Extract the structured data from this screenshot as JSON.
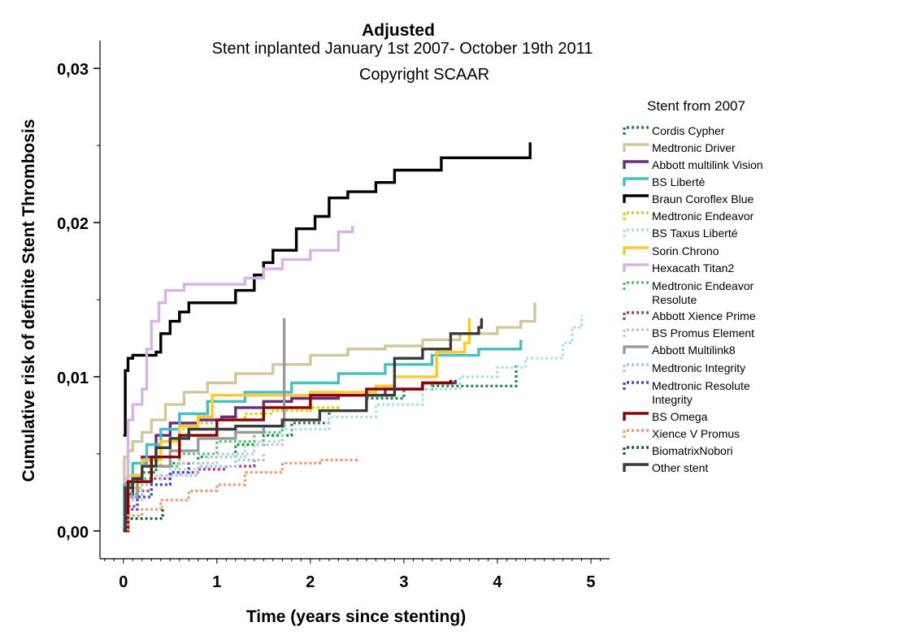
{
  "chart_data": {
    "type": "line",
    "title": "Adjusted",
    "subtitle": "Stent inplanted January 1st 2007- October 19th 2011",
    "subtitle2": "Copyright SCAAR",
    "xlabel": "Time (years since stenting)",
    "ylabel": "Cumulative risk of definite Stent Thrombosis",
    "xlim": [
      -0.25,
      5.2
    ],
    "ylim": [
      -0.0018,
      0.0318
    ],
    "xticks": [
      0,
      1,
      2,
      3,
      4,
      5
    ],
    "xtick_labels": [
      "0",
      "1",
      "2",
      "3",
      "4",
      "5"
    ],
    "yticks": [
      0.0,
      0.01,
      0.02,
      0.03
    ],
    "ytick_labels": [
      "0,00",
      "0,01",
      "0,02",
      "0,03"
    ],
    "legend_title": "Stent from 2007",
    "legend_position": "right",
    "grid": false,
    "series": [
      {
        "name": "Cordis Cypher",
        "color": "#1e8a4a",
        "dash": "dotted",
        "points": [
          [
            0,
            0
          ],
          [
            0.02,
            0.0032
          ],
          [
            0.1,
            0.0036
          ],
          [
            0.2,
            0.0038
          ],
          [
            0.35,
            0.0042
          ],
          [
            0.5,
            0.0044
          ],
          [
            0.8,
            0.0048
          ],
          [
            1.2,
            0.0056
          ],
          [
            1.5,
            0.0062
          ],
          [
            1.8,
            0.007
          ],
          [
            2.2,
            0.0078
          ],
          [
            2.6,
            0.0086
          ],
          [
            3,
            0.0092
          ],
          [
            3.3,
            0.0094
          ],
          [
            3.8,
            0.0094
          ],
          [
            4.2,
            0.0094
          ],
          [
            4.2,
            0.0108
          ]
        ]
      },
      {
        "name": "Medtronic Driver",
        "color": "#d1c79a",
        "dash": "solid",
        "points": [
          [
            0,
            0
          ],
          [
            0.01,
            0.0048
          ],
          [
            0.05,
            0.0052
          ],
          [
            0.1,
            0.0058
          ],
          [
            0.2,
            0.0064
          ],
          [
            0.3,
            0.0072
          ],
          [
            0.45,
            0.0082
          ],
          [
            0.65,
            0.009
          ],
          [
            0.9,
            0.0096
          ],
          [
            1.2,
            0.0102
          ],
          [
            1.6,
            0.0108
          ],
          [
            2,
            0.0114
          ],
          [
            2.4,
            0.0118
          ],
          [
            2.8,
            0.012
          ],
          [
            3.2,
            0.0124
          ],
          [
            3.6,
            0.0128
          ],
          [
            4,
            0.0132
          ],
          [
            4.25,
            0.0136
          ],
          [
            4.4,
            0.0148
          ]
        ]
      },
      {
        "name": "Abbott multilink Vision",
        "color": "#6b2a7a",
        "dash": "solid",
        "points": [
          [
            0,
            0
          ],
          [
            0.03,
            0.0024
          ],
          [
            0.1,
            0.0036
          ],
          [
            0.2,
            0.0048
          ],
          [
            0.35,
            0.0062
          ],
          [
            0.5,
            0.007
          ],
          [
            0.8,
            0.0072
          ],
          [
            1.05,
            0.0074
          ],
          [
            1.2,
            0.008
          ],
          [
            1.5,
            0.0084
          ],
          [
            1.8,
            0.0086
          ],
          [
            2.3,
            0.0088
          ],
          [
            2.8,
            0.0092
          ],
          [
            3.2,
            0.0096
          ],
          [
            3.55,
            0.0098
          ]
        ]
      },
      {
        "name": "BS Libertè",
        "color": "#45bfc4",
        "dash": "solid",
        "points": [
          [
            0,
            0
          ],
          [
            0.01,
            0.003
          ],
          [
            0.1,
            0.0044
          ],
          [
            0.25,
            0.0056
          ],
          [
            0.4,
            0.0066
          ],
          [
            0.6,
            0.0076
          ],
          [
            0.9,
            0.0084
          ],
          [
            1.3,
            0.009
          ],
          [
            1.8,
            0.0096
          ],
          [
            2.3,
            0.0102
          ],
          [
            2.8,
            0.0108
          ],
          [
            3.3,
            0.0114
          ],
          [
            3.8,
            0.0118
          ],
          [
            4.25,
            0.0124
          ]
        ]
      },
      {
        "name": "Braun Coroflex Blue",
        "color": "#000000",
        "dash": "solid",
        "points": [
          [
            0,
            0.0062
          ],
          [
            0.02,
            0.0104
          ],
          [
            0.05,
            0.0112
          ],
          [
            0.1,
            0.0114
          ],
          [
            0.35,
            0.0116
          ],
          [
            0.4,
            0.0128
          ],
          [
            0.5,
            0.0136
          ],
          [
            0.6,
            0.0142
          ],
          [
            0.7,
            0.0148
          ],
          [
            1,
            0.0148
          ],
          [
            1.2,
            0.0156
          ],
          [
            1.4,
            0.0166
          ],
          [
            1.5,
            0.0174
          ],
          [
            1.6,
            0.0182
          ],
          [
            1.85,
            0.0196
          ],
          [
            2.05,
            0.0204
          ],
          [
            2.2,
            0.0216
          ],
          [
            2.4,
            0.022
          ],
          [
            2.7,
            0.0226
          ],
          [
            2.9,
            0.0234
          ],
          [
            3.4,
            0.0242
          ],
          [
            3.8,
            0.0242
          ],
          [
            3.85,
            0.0242
          ],
          [
            4.35,
            0.0252
          ]
        ]
      },
      {
        "name": "Medtronic Endeavor",
        "color": "#d4d400",
        "dash": "dotted",
        "points": [
          [
            0,
            0
          ],
          [
            0.05,
            0.0028
          ],
          [
            0.2,
            0.0042
          ],
          [
            0.4,
            0.0058
          ],
          [
            0.6,
            0.0066
          ],
          [
            0.8,
            0.007
          ],
          [
            1,
            0.0072
          ],
          [
            1.3,
            0.0076
          ],
          [
            1.6,
            0.0078
          ],
          [
            2,
            0.008
          ],
          [
            2.3,
            0.0082
          ]
        ]
      },
      {
        "name": "BS Taxus Liberté",
        "color": "#a8e1e3",
        "dash": "dotted",
        "points": [
          [
            0,
            0
          ],
          [
            0.05,
            0.002
          ],
          [
            0.2,
            0.003
          ],
          [
            0.5,
            0.004
          ],
          [
            0.9,
            0.0048
          ],
          [
            1.3,
            0.0058
          ],
          [
            1.7,
            0.0066
          ],
          [
            2.2,
            0.0074
          ],
          [
            2.7,
            0.0082
          ],
          [
            3.2,
            0.0092
          ],
          [
            3.6,
            0.01
          ],
          [
            4,
            0.0106
          ],
          [
            4.3,
            0.0112
          ],
          [
            4.7,
            0.0122
          ],
          [
            4.8,
            0.0132
          ],
          [
            4.9,
            0.014
          ]
        ]
      },
      {
        "name": "Sorin Chrono",
        "color": "#ffc82c",
        "dash": "solid",
        "points": [
          [
            0,
            0
          ],
          [
            0.05,
            0.0036
          ],
          [
            0.2,
            0.0046
          ],
          [
            0.4,
            0.0058
          ],
          [
            0.6,
            0.0068
          ],
          [
            0.8,
            0.0074
          ],
          [
            0.95,
            0.0088
          ],
          [
            1.3,
            0.0088
          ],
          [
            2,
            0.009
          ],
          [
            2.7,
            0.0094
          ],
          [
            2.9,
            0.01
          ],
          [
            3.3,
            0.01
          ],
          [
            3.35,
            0.0116
          ],
          [
            3.65,
            0.0122
          ],
          [
            3.7,
            0.0138
          ]
        ]
      },
      {
        "name": "Hexacath Titan2",
        "color": "#d6b4e8",
        "dash": "solid",
        "points": [
          [
            0,
            0.0034
          ],
          [
            0.05,
            0.0072
          ],
          [
            0.1,
            0.0082
          ],
          [
            0.2,
            0.0092
          ],
          [
            0.25,
            0.0118
          ],
          [
            0.3,
            0.0136
          ],
          [
            0.38,
            0.0148
          ],
          [
            0.45,
            0.0156
          ],
          [
            0.65,
            0.016
          ],
          [
            1.3,
            0.0164
          ],
          [
            1.5,
            0.017
          ],
          [
            1.7,
            0.0176
          ],
          [
            2.0,
            0.0182
          ],
          [
            2.3,
            0.0194
          ],
          [
            2.45,
            0.0198
          ]
        ]
      },
      {
        "name": "Medtronic Endeavor Resolute",
        "color": "#4fca6b",
        "dash": "dotted",
        "points": [
          [
            0,
            0
          ],
          [
            0.05,
            0.0024
          ],
          [
            0.15,
            0.0034
          ],
          [
            0.3,
            0.0042
          ],
          [
            0.6,
            0.005
          ],
          [
            1,
            0.0058
          ],
          [
            1.4,
            0.0064
          ],
          [
            1.7,
            0.0068
          ]
        ]
      },
      {
        "name": "Abbott Xience Prime",
        "color": "#b03a7a",
        "dash": "dotted",
        "points": [
          [
            0,
            0
          ],
          [
            0.05,
            0.0016
          ],
          [
            0.15,
            0.0026
          ],
          [
            0.3,
            0.0034
          ],
          [
            0.5,
            0.0038
          ],
          [
            0.8,
            0.004
          ],
          [
            1.1,
            0.0042
          ],
          [
            1.4,
            0.0046
          ]
        ]
      },
      {
        "name": "BS Promus Element",
        "color": "#c8c8c8",
        "dash": "dotted",
        "points": [
          [
            0,
            0
          ],
          [
            0.05,
            0.002
          ],
          [
            0.15,
            0.003
          ],
          [
            0.3,
            0.0036
          ],
          [
            0.6,
            0.0044
          ],
          [
            1,
            0.005
          ],
          [
            1.4,
            0.0056
          ],
          [
            1.7,
            0.006
          ]
        ]
      },
      {
        "name": "Abbott Multilink8",
        "color": "#9a9a9a",
        "dash": "solid",
        "points": [
          [
            0,
            0.0008
          ],
          [
            0.05,
            0.0022
          ],
          [
            0.15,
            0.0032
          ],
          [
            0.3,
            0.0042
          ],
          [
            0.5,
            0.0052
          ],
          [
            0.8,
            0.006
          ],
          [
            1.2,
            0.0064
          ],
          [
            1.5,
            0.0068
          ],
          [
            1.72,
            0.0068
          ],
          [
            1.72,
            0.0138
          ]
        ]
      },
      {
        "name": "Medtronic Integrity",
        "color": "#a9c6e8",
        "dash": "dotted",
        "points": [
          [
            0,
            0
          ],
          [
            0.05,
            0.0022
          ],
          [
            0.2,
            0.003
          ],
          [
            0.4,
            0.0036
          ],
          [
            0.8,
            0.0042
          ],
          [
            1.2,
            0.0046
          ],
          [
            1.5,
            0.005
          ]
        ]
      },
      {
        "name": "Medtronic Resolute Integrity",
        "color": "#4848e0",
        "dash": "dotted",
        "points": [
          [
            0,
            0
          ],
          [
            0.05,
            0.0014
          ],
          [
            0.15,
            0.0022
          ],
          [
            0.3,
            0.003
          ],
          [
            0.5,
            0.0038
          ],
          [
            0.7,
            0.0044
          ]
        ]
      },
      {
        "name": "BS Omega",
        "color": "#8b0000",
        "dash": "solid",
        "points": [
          [
            0,
            0
          ],
          [
            0.05,
            0.0032
          ],
          [
            0.3,
            0.0048
          ],
          [
            0.6,
            0.0062
          ],
          [
            1,
            0.0072
          ],
          [
            1.5,
            0.008
          ],
          [
            2,
            0.0088
          ],
          [
            2.6,
            0.0092
          ],
          [
            3.2,
            0.0096
          ],
          [
            3.5,
            0.0098
          ]
        ]
      },
      {
        "name": "Xience V Promus",
        "color": "#f4956a",
        "dash": "dotted",
        "points": [
          [
            0,
            0
          ],
          [
            0.05,
            0.001
          ],
          [
            0.2,
            0.0014
          ],
          [
            0.4,
            0.002
          ],
          [
            0.7,
            0.0026
          ],
          [
            1,
            0.003
          ],
          [
            1.3,
            0.0038
          ],
          [
            1.7,
            0.0044
          ],
          [
            2.1,
            0.0046
          ],
          [
            2.5,
            0.0048
          ]
        ]
      },
      {
        "name": "BiomatrixNobori",
        "color": "#0e6a2e",
        "dash": "dotted",
        "points": [
          [
            0,
            0
          ],
          [
            0.02,
            0.0008
          ],
          [
            0.2,
            0.0008
          ],
          [
            0.4,
            0.0008
          ],
          [
            0.42,
            0.0016
          ]
        ]
      },
      {
        "name": "Other stent",
        "color": "#3a3a3a",
        "dash": "solid",
        "points": [
          [
            0,
            0
          ],
          [
            0.02,
            0.0028
          ],
          [
            0.1,
            0.0034
          ],
          [
            0.2,
            0.0042
          ],
          [
            0.35,
            0.0054
          ],
          [
            0.5,
            0.006
          ],
          [
            0.7,
            0.0066
          ],
          [
            1.2,
            0.0068
          ],
          [
            1.7,
            0.0072
          ],
          [
            2.1,
            0.0078
          ],
          [
            2.6,
            0.0088
          ],
          [
            2.9,
            0.0112
          ],
          [
            3.2,
            0.0118
          ],
          [
            3.5,
            0.0128
          ],
          [
            3.8,
            0.0132
          ],
          [
            3.83,
            0.0138
          ]
        ]
      }
    ],
    "legend_labels": [
      [
        "Cordis Cypher"
      ],
      [
        "Medtronic Driver"
      ],
      [
        "Abbott multilink Vision"
      ],
      [
        "BS Libertè"
      ],
      [
        "Braun Coroflex Blue"
      ],
      [
        "Medtronic Endeavor"
      ],
      [
        "BS Taxus Liberté"
      ],
      [
        "Sorin Chrono"
      ],
      [
        "Hexacath Titan2"
      ],
      [
        "Medtronic Endeavor",
        "Resolute"
      ],
      [
        "Abbott Xience Prime"
      ],
      [
        "BS Promus Element"
      ],
      [
        "Abbott Multilink8"
      ],
      [
        "Medtronic Integrity"
      ],
      [
        "Medtronic Resolute",
        "Integrity"
      ],
      [
        "BS Omega"
      ],
      [
        "Xience V Promus"
      ],
      [
        "BiomatrixNobori"
      ],
      [
        "Other stent"
      ]
    ]
  }
}
